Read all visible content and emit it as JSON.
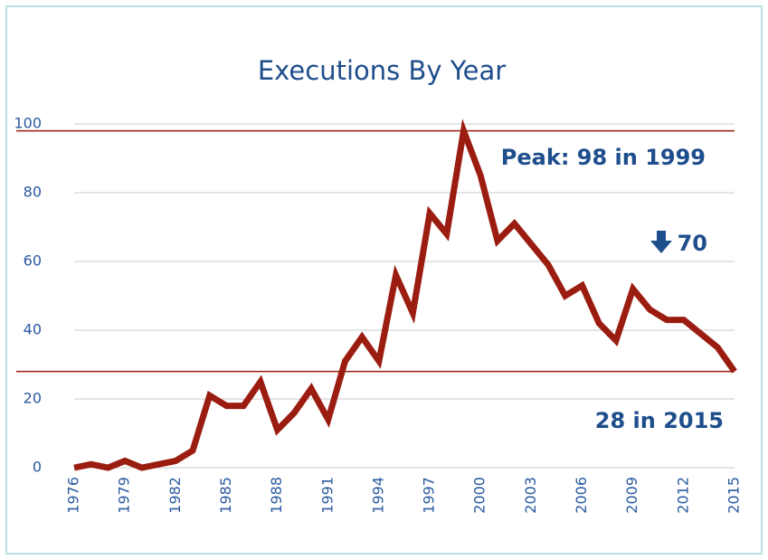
{
  "chart_data": {
    "type": "line",
    "title": "Executions By Year",
    "x": [
      1976,
      1977,
      1978,
      1979,
      1980,
      1981,
      1982,
      1983,
      1984,
      1985,
      1986,
      1987,
      1988,
      1989,
      1990,
      1991,
      1992,
      1993,
      1994,
      1995,
      1996,
      1997,
      1998,
      1999,
      2000,
      2001,
      2002,
      2003,
      2004,
      2005,
      2006,
      2007,
      2008,
      2009,
      2010,
      2011,
      2012,
      2013,
      2014,
      2015
    ],
    "series": [
      {
        "name": "Executions",
        "color": "#9b1c10",
        "values": [
          0,
          1,
          0,
          2,
          0,
          1,
          2,
          5,
          21,
          18,
          18,
          25,
          11,
          16,
          23,
          14,
          31,
          38,
          31,
          56,
          45,
          74,
          68,
          98,
          85,
          66,
          71,
          65,
          59,
          50,
          53,
          42,
          37,
          52,
          46,
          43,
          43,
          39,
          35,
          28
        ]
      }
    ],
    "xlim": [
      1976,
      2015
    ],
    "xticks": [
      1976,
      1979,
      1982,
      1985,
      1988,
      1991,
      1994,
      1997,
      2000,
      2003,
      2006,
      2009,
      2012,
      2015
    ],
    "ylim": [
      0,
      100
    ],
    "yticks": [
      0,
      20,
      40,
      60,
      80,
      100
    ],
    "grid": true,
    "reference_lines": [
      98,
      28
    ],
    "reference_color": "#9b1c10",
    "annotations": [
      "Peak: 98 in 1999",
      "70",
      "28 in 2015"
    ]
  }
}
